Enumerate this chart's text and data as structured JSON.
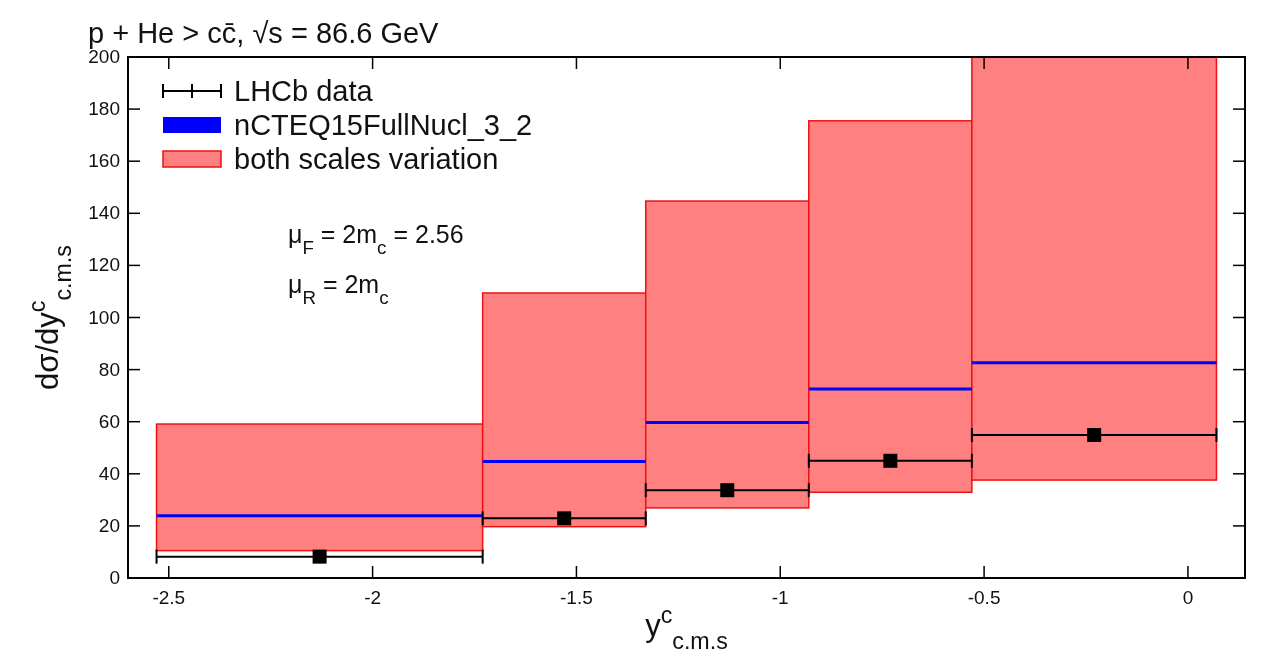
{
  "chart_data": {
    "type": "histogram",
    "title": "p + He > cc̄, √s = 86.6 GeV",
    "xlabel": "y$^{c}$$_{c.m.s}$",
    "ylabel": "dσ/dy$^{c}$$_{c.m.s}$",
    "xlim": [
      -2.6,
      0.14
    ],
    "xticks": [
      -2.5,
      -2,
      -1.5,
      -1,
      -0.5,
      0
    ],
    "ylim": [
      0,
      200
    ],
    "yticks": [
      0,
      20,
      40,
      60,
      80,
      100,
      120,
      140,
      160,
      180,
      200
    ],
    "grid": false,
    "legend": "top left",
    "annotations": [
      "μ$_{F}$ = 2m$_{c}$ = 2.56",
      "μ$_{R}$ = 2m$_{c}$"
    ],
    "series": [
      {
        "name": "both scales variation",
        "color": "#ff8080",
        "bins": [
          -2.53,
          -1.73,
          -1.33,
          -0.93,
          -0.53,
          0.07
        ],
        "base": [
          10.5,
          19.7,
          26.9,
          32.9,
          37.6
        ],
        "values": [
          48.6,
          89.7,
          117.8,
          142.6,
          162.4
        ]
      },
      {
        "name": "nCTEQ15FullNucl_3_2",
        "type": "line",
        "color": "#0000ff",
        "x": [
          -2.53,
          -1.73
        ],
        "values": [
          23.9,
          23.9
        ]
      },
      {
        "type": "line",
        "color": "#0000ff",
        "x": [
          -1.73,
          -1.33
        ],
        "values": [
          44.7,
          44.7
        ]
      },
      {
        "type": "line",
        "color": "#0000ff",
        "x": [
          -1.33,
          -0.93
        ],
        "values": [
          59.7,
          59.7
        ]
      },
      {
        "type": "line",
        "color": "#0000ff",
        "x": [
          -0.93,
          -0.53
        ],
        "values": [
          72.6,
          72.6
        ]
      },
      {
        "type": "line",
        "color": "#0000ff",
        "x": [
          -0.53,
          0.07
        ],
        "values": [
          82.6,
          82.6
        ]
      },
      {
        "name": "LHCb data",
        "type": "scatter",
        "color": "#000000",
        "marker": "square",
        "x": [
          -2.13,
          -1.53,
          -1.13,
          -0.73,
          -0.23
        ],
        "values": [
          8.2,
          22.9,
          33.7,
          45,
          54.9
        ],
        "xerrors": [
          [
            -2.53,
            -1.73
          ],
          [
            -1.73,
            -1.33
          ],
          [
            -1.33,
            -0.93
          ],
          [
            -0.93,
            -0.53
          ],
          [
            -0.53,
            0.07
          ]
        ]
      }
    ]
  }
}
